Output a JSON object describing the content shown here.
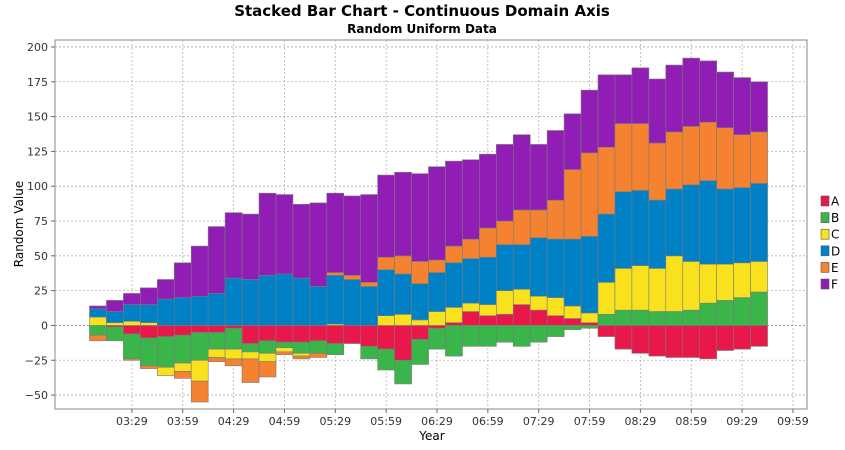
{
  "chart_data": {
    "type": "bar",
    "stacked": true,
    "title": "Stacked Bar Chart - Continuous Domain Axis",
    "subtitle": "Random Uniform Data",
    "xlabel": "Year",
    "ylabel": "Random Value",
    "ylim": [
      -60,
      205
    ],
    "y_ticks": [
      200,
      175,
      150,
      125,
      100,
      75,
      50,
      25,
      0,
      -25,
      -50
    ],
    "x_ticks": [
      "03:29",
      "03:59",
      "04:29",
      "04:59",
      "05:29",
      "05:59",
      "06:29",
      "06:59",
      "07:29",
      "07:59",
      "08:29",
      "08:59",
      "09:29",
      "09:59"
    ],
    "x_tick_positions": [
      2,
      5,
      8,
      11,
      14,
      17,
      20,
      23,
      26,
      29,
      32,
      35,
      38,
      41
    ],
    "grid": true,
    "legend_position": "right",
    "series_names": [
      "A",
      "B",
      "C",
      "D",
      "E",
      "F"
    ],
    "colors": {
      "A": "#e8194a",
      "B": "#39b54a",
      "C": "#f9e11e",
      "D": "#0081c6",
      "E": "#f58231",
      "F": "#911eb4"
    },
    "bars": [
      {
        "A": 0,
        "B": -7,
        "C": 6,
        "D": 6,
        "E": -4,
        "F": 2
      },
      {
        "A": -1,
        "B": -10,
        "C": 2,
        "D": 8,
        "E": 0,
        "F": 8
      },
      {
        "A": -6,
        "B": -18,
        "C": 3,
        "D": 12,
        "E": -1,
        "F": 8
      },
      {
        "A": -9,
        "B": -20,
        "C": 2,
        "D": 13,
        "E": -2,
        "F": 12
      },
      {
        "A": -8,
        "B": -22,
        "C": -6,
        "D": 19,
        "E": 0,
        "F": 14
      },
      {
        "A": -7,
        "B": -20,
        "C": -6,
        "D": 20,
        "E": -5,
        "F": 25
      },
      {
        "A": -5,
        "B": -20,
        "C": -15,
        "D": 21,
        "E": -15,
        "F": 36
      },
      {
        "A": -5,
        "B": -12,
        "C": -6,
        "D": 23,
        "E": -3,
        "F": 48
      },
      {
        "A": -2,
        "B": -15,
        "C": -7,
        "D": 34,
        "E": -5,
        "F": 47
      },
      {
        "A": -13,
        "B": -6,
        "C": -5,
        "D": 33,
        "E": -17,
        "F": 47
      },
      {
        "A": -11,
        "B": -9,
        "C": -6,
        "D": 36,
        "E": -11,
        "F": 59
      },
      {
        "A": -12,
        "B": -4,
        "C": -3,
        "D": 37,
        "E": -2,
        "F": 57
      },
      {
        "A": -12,
        "B": -8,
        "C": -2,
        "D": 34,
        "E": -2,
        "F": 53
      },
      {
        "A": -11,
        "B": -9,
        "C": 0,
        "D": 28,
        "E": -3,
        "F": 60
      },
      {
        "A": -13,
        "B": -8,
        "C": 1,
        "D": 35,
        "E": 2,
        "F": 57
      },
      {
        "A": -13,
        "B": 0,
        "C": 0,
        "D": 33,
        "E": 3,
        "F": 57
      },
      {
        "A": -15,
        "B": -9,
        "C": 0,
        "D": 28,
        "E": 3,
        "F": 63
      },
      {
        "A": -17,
        "B": -15,
        "C": 7,
        "D": 33,
        "E": 9,
        "F": 59
      },
      {
        "A": -25,
        "B": -17,
        "C": 8,
        "D": 29,
        "E": 13,
        "F": 60
      },
      {
        "A": -10,
        "B": -18,
        "C": 4,
        "D": 26,
        "E": 16,
        "F": 63
      },
      {
        "A": -2,
        "B": -15,
        "C": 10,
        "D": 28,
        "E": 9,
        "F": 67
      },
      {
        "A": 2,
        "B": -22,
        "C": 11,
        "D": 32,
        "E": 12,
        "F": 61
      },
      {
        "A": 10,
        "B": -15,
        "C": 6,
        "D": 32,
        "E": 14,
        "F": 57
      },
      {
        "A": 7,
        "B": -15,
        "C": 8,
        "D": 34,
        "E": 21,
        "F": 53
      },
      {
        "A": 8,
        "B": -12,
        "C": 17,
        "D": 33,
        "E": 17,
        "F": 55
      },
      {
        "A": 15,
        "B": -15,
        "C": 11,
        "D": 32,
        "E": 25,
        "F": 54
      },
      {
        "A": 11,
        "B": -12,
        "C": 10,
        "D": 42,
        "E": 20,
        "F": 47
      },
      {
        "A": 7,
        "B": -8,
        "C": 13,
        "D": 42,
        "E": 28,
        "F": 50
      },
      {
        "A": 5,
        "B": -3,
        "C": 9,
        "D": 48,
        "E": 50,
        "F": 40
      },
      {
        "A": 2,
        "B": -2,
        "C": 7,
        "D": 55,
        "E": 60,
        "F": 45
      },
      {
        "A": -8,
        "B": 8,
        "C": 23,
        "D": 49,
        "E": 48,
        "F": 52
      },
      {
        "A": -17,
        "B": 11,
        "C": 30,
        "D": 55,
        "E": 49,
        "F": 35
      },
      {
        "A": -20,
        "B": 11,
        "C": 32,
        "D": 54,
        "E": 48,
        "F": 40
      },
      {
        "A": -22,
        "B": 10,
        "C": 31,
        "D": 49,
        "E": 41,
        "F": 46
      },
      {
        "A": -23,
        "B": 10,
        "C": 40,
        "D": 48,
        "E": 41,
        "F": 48
      },
      {
        "A": -23,
        "B": 11,
        "C": 35,
        "D": 55,
        "E": 42,
        "F": 49
      },
      {
        "A": -24,
        "B": 16,
        "C": 28,
        "D": 60,
        "E": 42,
        "F": 44
      },
      {
        "A": -18,
        "B": 18,
        "C": 26,
        "D": 54,
        "E": 44,
        "F": 40
      },
      {
        "A": -17,
        "B": 20,
        "C": 25,
        "D": 54,
        "E": 38,
        "F": 41
      },
      {
        "A": -15,
        "B": 24,
        "C": 22,
        "D": 56,
        "E": 37,
        "F": 36
      }
    ]
  }
}
